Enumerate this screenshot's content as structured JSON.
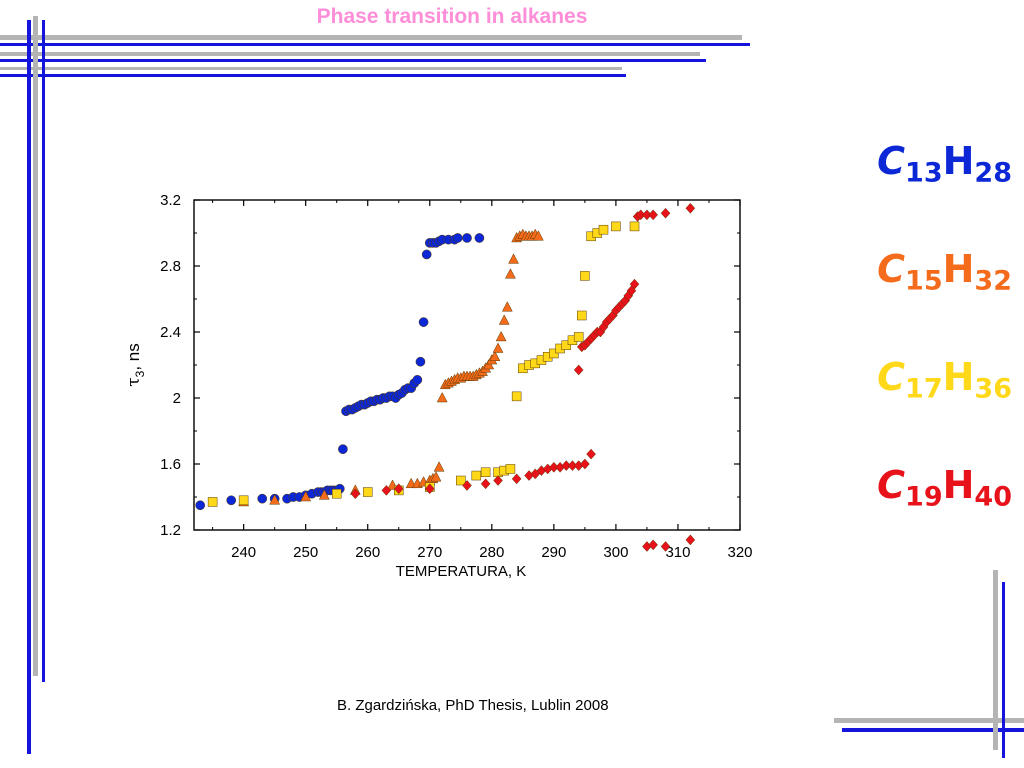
{
  "slide": {
    "title": "Phase transition in alkanes",
    "caption": "B. Zgardzińska,  PhD Thesis, Lublin 2008"
  },
  "colors": {
    "c13": "#0b27d6",
    "c15": "#f46b1c",
    "c17": "#ffd81a",
    "c19": "#e8121b",
    "title": "#ff8ed8",
    "frame_blue": "#1414dc",
    "frame_gray": "#b4b4b4"
  },
  "formulas": [
    {
      "c": "C",
      "c_sub": "13",
      "h": "H",
      "h_sub": "28",
      "color": "#0b27d6"
    },
    {
      "c": "C",
      "c_sub": "15",
      "h": "H",
      "h_sub": "32",
      "color": "#f46b1c"
    },
    {
      "c": "C",
      "c_sub": "17",
      "h": "H",
      "h_sub": "36",
      "color": "#ffd81a"
    },
    {
      "c": "C",
      "c_sub": "19",
      "h": "H",
      "h_sub": "40",
      "color": "#e8121b"
    }
  ],
  "chart_data": {
    "type": "scatter",
    "title": "",
    "xlabel": "TEMPERATURA, K",
    "ylabel_symbol": "τ",
    "ylabel_sub": "3",
    "ylabel_rest": ", ns",
    "xlim": [
      232,
      320
    ],
    "ylim": [
      1.2,
      3.2
    ],
    "x_ticks": [
      240,
      250,
      260,
      270,
      280,
      290,
      300,
      310,
      320
    ],
    "y_ticks": [
      1.2,
      1.6,
      2,
      2.4,
      2.8,
      3.2
    ],
    "y_tick_labels": [
      "1.2",
      "1.6",
      "2",
      "2.4",
      "2.8",
      "3.2"
    ],
    "grid": false,
    "series": [
      {
        "marker": "circle",
        "color": "#0b27d6",
        "points": [
          [
            233,
            1.35
          ],
          [
            238,
            1.38
          ],
          [
            243,
            1.39
          ],
          [
            245,
            1.39
          ],
          [
            247,
            1.39
          ],
          [
            248,
            1.4
          ],
          [
            249,
            1.4
          ],
          [
            250,
            1.41
          ],
          [
            251,
            1.42
          ],
          [
            252,
            1.43
          ],
          [
            252.5,
            1.43
          ],
          [
            253,
            1.43
          ],
          [
            253.5,
            1.44
          ],
          [
            254,
            1.44
          ],
          [
            254.5,
            1.44
          ],
          [
            255,
            1.44
          ],
          [
            255.5,
            1.45
          ],
          [
            256,
            1.69
          ],
          [
            256.5,
            1.92
          ],
          [
            257,
            1.93
          ],
          [
            257.5,
            1.93
          ],
          [
            258,
            1.94
          ],
          [
            258.5,
            1.95
          ],
          [
            259,
            1.96
          ],
          [
            259.5,
            1.96
          ],
          [
            260,
            1.97
          ],
          [
            260.5,
            1.98
          ],
          [
            261,
            1.98
          ],
          [
            261.5,
            1.99
          ],
          [
            262,
            1.99
          ],
          [
            262.5,
            2.0
          ],
          [
            263,
            2.0
          ],
          [
            263.5,
            2.01
          ],
          [
            264,
            2.01
          ],
          [
            264.5,
            2.0
          ],
          [
            265,
            2.02
          ],
          [
            265.5,
            2.03
          ],
          [
            266,
            2.05
          ],
          [
            266.5,
            2.06
          ],
          [
            267,
            2.06
          ],
          [
            267.5,
            2.09
          ],
          [
            268,
            2.11
          ],
          [
            268.5,
            2.22
          ],
          [
            269,
            2.46
          ],
          [
            269.5,
            2.87
          ],
          [
            270,
            2.94
          ],
          [
            270.5,
            2.94
          ],
          [
            271,
            2.94
          ],
          [
            271.5,
            2.95
          ],
          [
            272,
            2.96
          ],
          [
            273,
            2.96
          ],
          [
            274,
            2.96
          ],
          [
            274.5,
            2.97
          ],
          [
            276,
            2.97
          ],
          [
            278,
            2.97
          ]
        ]
      },
      {
        "marker": "triangle",
        "color": "#f46b1c",
        "points": [
          [
            240,
            1.37
          ],
          [
            245,
            1.38
          ],
          [
            250,
            1.4
          ],
          [
            253,
            1.41
          ],
          [
            258,
            1.44
          ],
          [
            264,
            1.47
          ],
          [
            267,
            1.48
          ],
          [
            268,
            1.48
          ],
          [
            269,
            1.49
          ],
          [
            270,
            1.5
          ],
          [
            270.5,
            1.51
          ],
          [
            271,
            1.52
          ],
          [
            271.5,
            1.58
          ],
          [
            272,
            2.0
          ],
          [
            272.5,
            2.08
          ],
          [
            273,
            2.09
          ],
          [
            273.5,
            2.1
          ],
          [
            274,
            2.11
          ],
          [
            274.5,
            2.12
          ],
          [
            275,
            2.12
          ],
          [
            275.5,
            2.13
          ],
          [
            276,
            2.13
          ],
          [
            276.5,
            2.13
          ],
          [
            277,
            2.13
          ],
          [
            277.5,
            2.14
          ],
          [
            278,
            2.15
          ],
          [
            278.5,
            2.16
          ],
          [
            279,
            2.18
          ],
          [
            279.5,
            2.2
          ],
          [
            280,
            2.23
          ],
          [
            280.5,
            2.25
          ],
          [
            281,
            2.3
          ],
          [
            281.5,
            2.37
          ],
          [
            282,
            2.47
          ],
          [
            282.5,
            2.55
          ],
          [
            283,
            2.75
          ],
          [
            283.5,
            2.84
          ],
          [
            284,
            2.97
          ],
          [
            284.5,
            2.98
          ],
          [
            285,
            2.99
          ],
          [
            285.5,
            2.98
          ],
          [
            286,
            2.98
          ],
          [
            286.5,
            2.98
          ],
          [
            287,
            2.99
          ],
          [
            287.5,
            2.98
          ]
        ]
      },
      {
        "marker": "square",
        "color": "#ffd81a",
        "points": [
          [
            235,
            1.37
          ],
          [
            240,
            1.38
          ],
          [
            255,
            1.42
          ],
          [
            260,
            1.43
          ],
          [
            265,
            1.44
          ],
          [
            270,
            1.46
          ],
          [
            275,
            1.5
          ],
          [
            277.5,
            1.53
          ],
          [
            279,
            1.55
          ],
          [
            281,
            1.55
          ],
          [
            282,
            1.56
          ],
          [
            283,
            1.57
          ],
          [
            284,
            2.01
          ],
          [
            285,
            2.18
          ],
          [
            286,
            2.2
          ],
          [
            287,
            2.21
          ],
          [
            288,
            2.23
          ],
          [
            289,
            2.25
          ],
          [
            290,
            2.27
          ],
          [
            291,
            2.3
          ],
          [
            292,
            2.32
          ],
          [
            293,
            2.35
          ],
          [
            294,
            2.37
          ],
          [
            294.5,
            2.5
          ],
          [
            295,
            2.74
          ],
          [
            296,
            2.98
          ],
          [
            297,
            3.0
          ],
          [
            298,
            3.02
          ],
          [
            300,
            3.04
          ],
          [
            303,
            3.04
          ]
        ]
      },
      {
        "marker": "diamond",
        "color": "#e8121b",
        "points": [
          [
            258,
            1.42
          ],
          [
            263,
            1.44
          ],
          [
            265,
            1.45
          ],
          [
            270,
            1.45
          ],
          [
            276,
            1.47
          ],
          [
            279,
            1.48
          ],
          [
            281,
            1.5
          ],
          [
            284,
            1.51
          ],
          [
            286,
            1.53
          ],
          [
            287,
            1.54
          ],
          [
            288,
            1.56
          ],
          [
            289,
            1.57
          ],
          [
            290,
            1.58
          ],
          [
            291,
            1.58
          ],
          [
            292,
            1.59
          ],
          [
            293,
            1.59
          ],
          [
            294,
            1.59
          ],
          [
            295,
            1.6
          ],
          [
            296,
            1.66
          ],
          [
            294,
            2.17
          ],
          [
            294.5,
            2.31
          ],
          [
            295,
            2.32
          ],
          [
            295.5,
            2.34
          ],
          [
            296,
            2.36
          ],
          [
            296.5,
            2.38
          ],
          [
            297,
            2.4
          ],
          [
            297.5,
            2.4
          ],
          [
            298,
            2.43
          ],
          [
            298.5,
            2.46
          ],
          [
            299,
            2.48
          ],
          [
            299.5,
            2.5
          ],
          [
            300,
            2.53
          ],
          [
            300.5,
            2.55
          ],
          [
            301,
            2.57
          ],
          [
            301.5,
            2.59
          ],
          [
            302,
            2.62
          ],
          [
            302.5,
            2.65
          ],
          [
            303,
            2.69
          ],
          [
            303.5,
            3.1
          ],
          [
            304,
            3.11
          ],
          [
            305,
            3.11
          ],
          [
            306,
            3.11
          ],
          [
            308,
            3.12
          ],
          [
            312,
            3.15
          ],
          [
            305,
            1.1
          ],
          [
            306,
            1.11
          ],
          [
            308,
            1.1
          ],
          [
            312,
            1.14
          ]
        ]
      }
    ]
  }
}
